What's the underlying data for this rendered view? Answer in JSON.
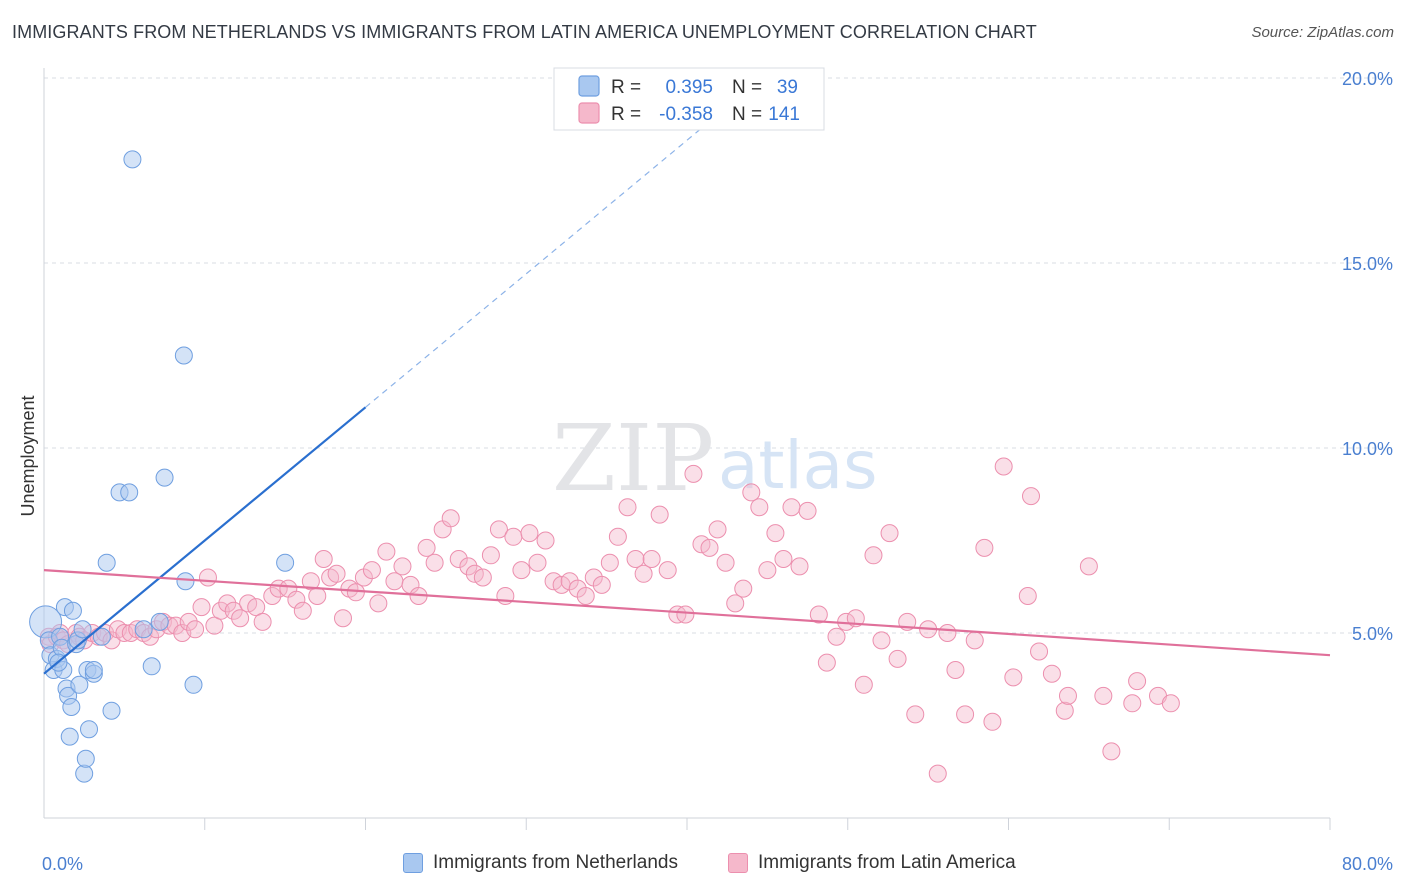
{
  "title": "IMMIGRANTS FROM NETHERLANDS VS IMMIGRANTS FROM LATIN AMERICA UNEMPLOYMENT CORRELATION CHART",
  "source": "Source: ZipAtlas.com",
  "watermark": {
    "zip": "ZIP",
    "atlas": "atlas"
  },
  "colors": {
    "blue_fill": "#a9c8f0",
    "blue_stroke": "#6f9fe0",
    "blue_line": "#2a6fcf",
    "pink_fill": "#f5b8cb",
    "pink_stroke": "#ec8fae",
    "pink_line": "#e0709a",
    "tick_text": "#4a7fd0",
    "grid": "#d8dce3"
  },
  "legend": {
    "rows": [
      {
        "r_label": "R =",
        "r_value": "0.395",
        "n_label": "N =",
        "n_value": "39"
      },
      {
        "r_label": "R =",
        "r_value": "-0.358",
        "n_label": "N =",
        "n_value": "141"
      }
    ]
  },
  "bottom_legend": {
    "netherlands": "Immigrants from Netherlands",
    "latin_america": "Immigrants from Latin America"
  },
  "chart_data": {
    "type": "scatter",
    "title": "IMMIGRANTS FROM NETHERLANDS VS IMMIGRANTS FROM LATIN AMERICA UNEMPLOYMENT CORRELATION CHART",
    "xlabel": "",
    "ylabel": "Unemployment",
    "xlim": [
      0,
      80
    ],
    "ylim": [
      0,
      20
    ],
    "x_tick_labels": [
      "0.0%",
      "80.0%"
    ],
    "y_ticks": [
      5,
      10,
      15,
      20
    ],
    "y_tick_labels": [
      "5.0%",
      "10.0%",
      "15.0%",
      "20.0%"
    ],
    "grid": true,
    "legend_position": "top-center",
    "series": [
      {
        "name": "Immigrants from Netherlands",
        "r": 0.395,
        "n": 39,
        "trend": {
          "x0": 0,
          "y0": 3.9,
          "x1": 20,
          "y1": 11.1,
          "dashed_to_x": 43,
          "dashed_to_y": 19.4
        },
        "points": [
          [
            0.1,
            5.3
          ],
          [
            0.3,
            4.8
          ],
          [
            0.4,
            4.4
          ],
          [
            0.6,
            4.0
          ],
          [
            0.8,
            4.3
          ],
          [
            1.0,
            4.9
          ],
          [
            1.1,
            4.6
          ],
          [
            1.2,
            4.0
          ],
          [
            1.3,
            5.7
          ],
          [
            1.4,
            3.5
          ],
          [
            1.5,
            3.3
          ],
          [
            1.6,
            2.2
          ],
          [
            1.7,
            3.0
          ],
          [
            1.8,
            5.6
          ],
          [
            2.0,
            4.7
          ],
          [
            2.1,
            4.8
          ],
          [
            2.2,
            3.6
          ],
          [
            2.4,
            5.1
          ],
          [
            2.5,
            1.2
          ],
          [
            2.6,
            1.6
          ],
          [
            2.7,
            4.0
          ],
          [
            2.8,
            2.4
          ],
          [
            3.1,
            3.9
          ],
          [
            3.1,
            4.0
          ],
          [
            3.6,
            4.9
          ],
          [
            3.9,
            6.9
          ],
          [
            4.2,
            2.9
          ],
          [
            4.7,
            8.8
          ],
          [
            5.3,
            8.8
          ],
          [
            6.2,
            5.1
          ],
          [
            6.7,
            4.1
          ],
          [
            7.2,
            5.3
          ],
          [
            7.5,
            9.2
          ],
          [
            8.7,
            12.5
          ],
          [
            8.8,
            6.4
          ],
          [
            9.3,
            3.6
          ],
          [
            15.0,
            6.9
          ],
          [
            5.5,
            17.8
          ],
          [
            0.9,
            4.2
          ]
        ]
      },
      {
        "name": "Immigrants from Latin America",
        "r": -0.358,
        "n": 141,
        "trend": {
          "x0": 0,
          "y0": 6.7,
          "x1": 80,
          "y1": 4.4
        },
        "points": [
          [
            0.3,
            4.9
          ],
          [
            0.4,
            4.7
          ],
          [
            0.8,
            4.9
          ],
          [
            1.0,
            5.0
          ],
          [
            1.2,
            4.8
          ],
          [
            1.5,
            4.7
          ],
          [
            2.0,
            5.0
          ],
          [
            2.2,
            4.9
          ],
          [
            2.5,
            4.8
          ],
          [
            3.0,
            5.0
          ],
          [
            3.4,
            4.9
          ],
          [
            3.8,
            5.0
          ],
          [
            4.2,
            4.8
          ],
          [
            4.6,
            5.1
          ],
          [
            5.0,
            5.0
          ],
          [
            5.4,
            5.0
          ],
          [
            5.8,
            5.1
          ],
          [
            6.2,
            5.0
          ],
          [
            6.6,
            4.9
          ],
          [
            7.0,
            5.1
          ],
          [
            7.4,
            5.3
          ],
          [
            7.8,
            5.2
          ],
          [
            8.2,
            5.2
          ],
          [
            8.6,
            5.0
          ],
          [
            9.0,
            5.3
          ],
          [
            9.4,
            5.1
          ],
          [
            9.8,
            5.7
          ],
          [
            10.2,
            6.5
          ],
          [
            10.6,
            5.2
          ],
          [
            11.0,
            5.6
          ],
          [
            11.4,
            5.8
          ],
          [
            11.8,
            5.6
          ],
          [
            12.2,
            5.4
          ],
          [
            12.7,
            5.8
          ],
          [
            13.2,
            5.7
          ],
          [
            13.6,
            5.3
          ],
          [
            14.2,
            6.0
          ],
          [
            14.6,
            6.2
          ],
          [
            15.2,
            6.2
          ],
          [
            15.7,
            5.9
          ],
          [
            16.1,
            5.6
          ],
          [
            16.6,
            6.4
          ],
          [
            17.0,
            6.0
          ],
          [
            17.4,
            7.0
          ],
          [
            17.8,
            6.5
          ],
          [
            18.2,
            6.6
          ],
          [
            18.6,
            5.4
          ],
          [
            19.0,
            6.2
          ],
          [
            19.4,
            6.1
          ],
          [
            19.9,
            6.5
          ],
          [
            20.4,
            6.7
          ],
          [
            20.8,
            5.8
          ],
          [
            21.3,
            7.2
          ],
          [
            21.8,
            6.4
          ],
          [
            22.3,
            6.8
          ],
          [
            22.8,
            6.3
          ],
          [
            23.3,
            6.0
          ],
          [
            23.8,
            7.3
          ],
          [
            24.3,
            6.9
          ],
          [
            24.8,
            7.8
          ],
          [
            25.3,
            8.1
          ],
          [
            25.8,
            7.0
          ],
          [
            26.4,
            6.8
          ],
          [
            26.8,
            6.6
          ],
          [
            27.3,
            6.5
          ],
          [
            27.8,
            7.1
          ],
          [
            28.3,
            7.8
          ],
          [
            28.7,
            6.0
          ],
          [
            29.2,
            7.6
          ],
          [
            29.7,
            6.7
          ],
          [
            30.2,
            7.7
          ],
          [
            30.7,
            6.9
          ],
          [
            31.2,
            7.5
          ],
          [
            31.7,
            6.4
          ],
          [
            32.2,
            6.3
          ],
          [
            32.7,
            6.4
          ],
          [
            33.2,
            6.2
          ],
          [
            33.7,
            6.0
          ],
          [
            34.2,
            6.5
          ],
          [
            34.7,
            6.3
          ],
          [
            35.2,
            6.9
          ],
          [
            35.7,
            7.6
          ],
          [
            36.3,
            8.4
          ],
          [
            36.8,
            7.0
          ],
          [
            37.3,
            6.6
          ],
          [
            37.8,
            7.0
          ],
          [
            38.3,
            8.2
          ],
          [
            38.8,
            6.7
          ],
          [
            39.4,
            5.5
          ],
          [
            39.9,
            5.5
          ],
          [
            40.4,
            9.3
          ],
          [
            40.9,
            7.4
          ],
          [
            41.4,
            7.3
          ],
          [
            41.9,
            7.8
          ],
          [
            42.4,
            6.9
          ],
          [
            43.0,
            5.8
          ],
          [
            43.5,
            6.2
          ],
          [
            44.0,
            8.8
          ],
          [
            44.5,
            8.4
          ],
          [
            45.0,
            6.7
          ],
          [
            45.5,
            7.7
          ],
          [
            46.0,
            7.0
          ],
          [
            46.5,
            8.4
          ],
          [
            47.0,
            6.8
          ],
          [
            47.5,
            8.3
          ],
          [
            48.2,
            5.5
          ],
          [
            48.7,
            4.2
          ],
          [
            49.3,
            4.9
          ],
          [
            49.9,
            5.3
          ],
          [
            50.5,
            5.4
          ],
          [
            51.0,
            3.6
          ],
          [
            51.6,
            7.1
          ],
          [
            52.1,
            4.8
          ],
          [
            52.6,
            7.7
          ],
          [
            53.1,
            4.3
          ],
          [
            53.7,
            5.3
          ],
          [
            54.2,
            2.8
          ],
          [
            55.0,
            5.1
          ],
          [
            55.6,
            1.2
          ],
          [
            56.2,
            5.0
          ],
          [
            56.7,
            4.0
          ],
          [
            57.3,
            2.8
          ],
          [
            57.9,
            4.8
          ],
          [
            58.5,
            7.3
          ],
          [
            59.0,
            2.6
          ],
          [
            59.7,
            9.5
          ],
          [
            60.3,
            3.8
          ],
          [
            61.2,
            6.0
          ],
          [
            61.4,
            8.7
          ],
          [
            61.9,
            4.5
          ],
          [
            62.7,
            3.9
          ],
          [
            63.5,
            2.9
          ],
          [
            63.7,
            3.3
          ],
          [
            65.0,
            6.8
          ],
          [
            65.9,
            3.3
          ],
          [
            66.4,
            1.8
          ],
          [
            67.7,
            3.1
          ],
          [
            68.0,
            3.7
          ],
          [
            69.3,
            3.3
          ],
          [
            70.1,
            3.1
          ]
        ]
      }
    ]
  }
}
